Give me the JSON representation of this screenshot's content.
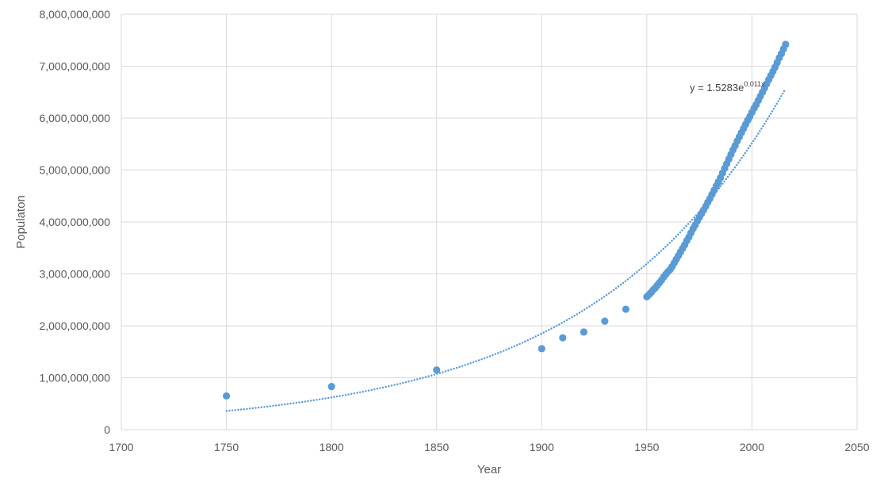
{
  "chart_data": {
    "type": "scatter",
    "title": "",
    "xlabel": "Year",
    "ylabel": "Populaton",
    "xlim": [
      1700,
      2050
    ],
    "ylim": [
      0,
      8000000000
    ],
    "x_ticks": [
      1700,
      1750,
      1800,
      1850,
      1900,
      1950,
      2000,
      2050
    ],
    "y_ticks": [
      0,
      1000000000,
      2000000000,
      3000000000,
      4000000000,
      5000000000,
      6000000000,
      7000000000,
      8000000000
    ],
    "x_tick_labels": [
      "1700",
      "1750",
      "1800",
      "1850",
      "1900",
      "1950",
      "2000",
      "2050"
    ],
    "y_tick_labels": [
      "0",
      "1,000,000,000",
      "2,000,000,000",
      "3,000,000,000",
      "4,000,000,000",
      "5,000,000,000",
      "6,000,000,000",
      "7,000,000,000",
      "8,000,000,000"
    ],
    "grid": true,
    "legend": "none",
    "colors": {
      "series": "#5B9BD5",
      "grid": "#D9D9D9",
      "text": "#595959"
    },
    "series": [
      {
        "points": [
          [
            1750,
            650000000
          ],
          [
            1800,
            830000000
          ],
          [
            1850,
            1150000000
          ],
          [
            1900,
            1560000000
          ],
          [
            1910,
            1770000000
          ],
          [
            1920,
            1880000000
          ],
          [
            1930,
            2090000000
          ],
          [
            1940,
            2320000000
          ],
          [
            1950,
            2560000000
          ],
          [
            1951,
            2600000000
          ],
          [
            1952,
            2640000000
          ],
          [
            1953,
            2690000000
          ],
          [
            1954,
            2730000000
          ],
          [
            1955,
            2780000000
          ],
          [
            1956,
            2830000000
          ],
          [
            1957,
            2880000000
          ],
          [
            1958,
            2940000000
          ],
          [
            1959,
            2990000000
          ],
          [
            1960,
            3040000000
          ],
          [
            1961,
            3080000000
          ],
          [
            1962,
            3140000000
          ],
          [
            1963,
            3210000000
          ],
          [
            1964,
            3280000000
          ],
          [
            1965,
            3350000000
          ],
          [
            1966,
            3420000000
          ],
          [
            1967,
            3490000000
          ],
          [
            1968,
            3560000000
          ],
          [
            1969,
            3640000000
          ],
          [
            1970,
            3710000000
          ],
          [
            1971,
            3790000000
          ],
          [
            1972,
            3870000000
          ],
          [
            1973,
            3940000000
          ],
          [
            1974,
            4020000000
          ],
          [
            1975,
            4090000000
          ],
          [
            1976,
            4160000000
          ],
          [
            1977,
            4230000000
          ],
          [
            1978,
            4300000000
          ],
          [
            1979,
            4380000000
          ],
          [
            1980,
            4450000000
          ],
          [
            1981,
            4530000000
          ],
          [
            1982,
            4610000000
          ],
          [
            1983,
            4690000000
          ],
          [
            1984,
            4770000000
          ],
          [
            1985,
            4850000000
          ],
          [
            1986,
            4940000000
          ],
          [
            1987,
            5030000000
          ],
          [
            1988,
            5120000000
          ],
          [
            1989,
            5210000000
          ],
          [
            1990,
            5300000000
          ],
          [
            1991,
            5390000000
          ],
          [
            1992,
            5470000000
          ],
          [
            1993,
            5560000000
          ],
          [
            1994,
            5640000000
          ],
          [
            1995,
            5720000000
          ],
          [
            1996,
            5800000000
          ],
          [
            1997,
            5880000000
          ],
          [
            1998,
            5960000000
          ],
          [
            1999,
            6030000000
          ],
          [
            2000,
            6110000000
          ],
          [
            2001,
            6190000000
          ],
          [
            2002,
            6260000000
          ],
          [
            2003,
            6340000000
          ],
          [
            2004,
            6420000000
          ],
          [
            2005,
            6500000000
          ],
          [
            2006,
            6580000000
          ],
          [
            2007,
            6660000000
          ],
          [
            2008,
            6740000000
          ],
          [
            2009,
            6820000000
          ],
          [
            2010,
            6900000000
          ],
          [
            2011,
            6980000000
          ],
          [
            2012,
            7070000000
          ],
          [
            2013,
            7160000000
          ],
          [
            2014,
            7240000000
          ],
          [
            2015,
            7330000000
          ],
          [
            2016,
            7420000000
          ]
        ]
      }
    ],
    "trendline": {
      "type": "exponential",
      "coefficient": 1.5283,
      "exponent": 0.011,
      "x_range": [
        1750,
        2016
      ],
      "y_range": [
        360000000,
        6570000000
      ],
      "label_base": "y = 1.5283e",
      "label_exponent": "0.011x"
    }
  }
}
